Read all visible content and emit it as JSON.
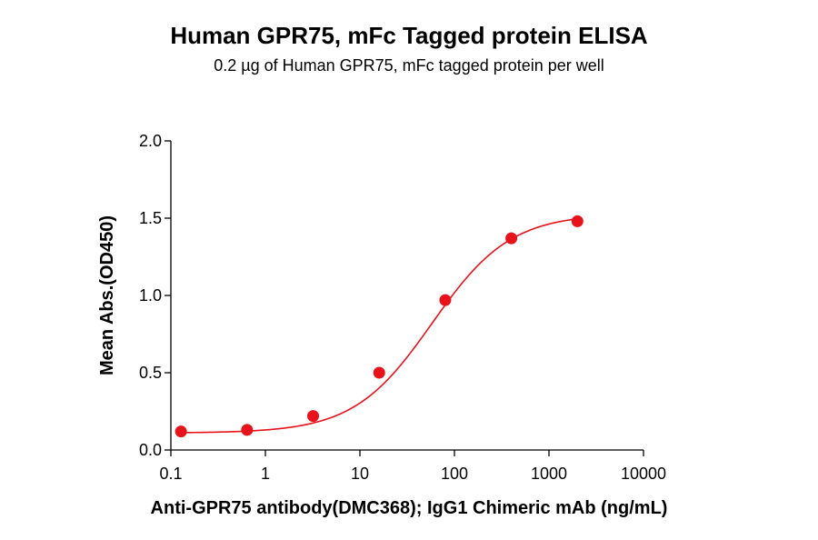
{
  "chart_data": {
    "type": "scatter",
    "title": "Human GPR75, mFc Tagged protein ELISA",
    "subtitle": "0.2 µg of Human GPR75, mFc tagged protein per well",
    "xlabel": "Anti-GPR75 antibody(DMC368); IgG1 Chimeric mAb (ng/mL)",
    "ylabel": "Mean Abs.(OD450)",
    "x_scale": "log",
    "xlim": [
      0.1,
      10000
    ],
    "ylim": [
      0,
      2.0
    ],
    "x_ticks": [
      0.1,
      1,
      10,
      100,
      1000,
      10000
    ],
    "x_tick_labels": [
      "0.1",
      "1",
      "10",
      "100",
      "1000",
      "10000"
    ],
    "y_ticks": [
      0,
      0.5,
      1.0,
      1.5,
      2.0
    ],
    "y_tick_labels": [
      "0.0",
      "0.5",
      "1.0",
      "1.5",
      "2.0"
    ],
    "grid": false,
    "point_color": "#e8121a",
    "curve_color": "#e8121a",
    "series": [
      {
        "x": [
          0.128,
          0.64,
          3.2,
          16,
          80,
          400,
          2000
        ],
        "y": [
          0.12,
          0.13,
          0.22,
          0.5,
          0.97,
          1.37,
          1.48
        ]
      }
    ],
    "fit": "four-parameter logistic"
  }
}
